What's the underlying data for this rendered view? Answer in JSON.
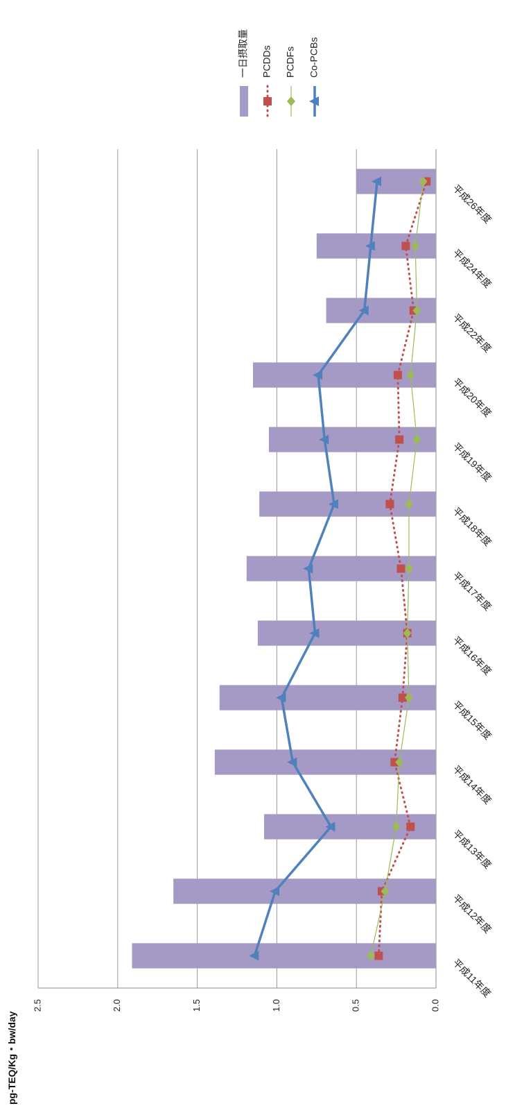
{
  "chart_data": {
    "type": "bar",
    "title": "",
    "ylabel": "pg-TEQ/Kg・bw/day",
    "xlabel": "",
    "ylim": [
      0,
      2.5
    ],
    "yticks": [
      "0.0",
      "0.5",
      "1.0",
      "1.5",
      "2.0",
      "2.5"
    ],
    "grid": true,
    "legend_position": "top-right",
    "categories": [
      "平成11年度",
      "平成12年度",
      "平成13年度",
      "平成14年度",
      "平成15年度",
      "平成16年度",
      "平成17年度",
      "平成18年度",
      "平成19年度",
      "平成20年度",
      "平成22年度",
      "平成24年度",
      "平成26年度"
    ],
    "series": [
      {
        "name": "一日摂取量",
        "kind": "bar",
        "color": "#a599c5",
        "values": [
          1.91,
          1.65,
          1.08,
          1.39,
          1.36,
          1.12,
          1.19,
          1.11,
          1.05,
          1.15,
          0.69,
          0.75,
          0.5
        ]
      },
      {
        "name": "PCDDs",
        "kind": "line-dotted",
        "marker": "square",
        "color": "#c0504d",
        "values": [
          0.36,
          0.34,
          0.16,
          0.26,
          0.21,
          0.18,
          0.22,
          0.29,
          0.23,
          0.24,
          0.14,
          0.19,
          0.06
        ]
      },
      {
        "name": "PCDFs",
        "kind": "line",
        "marker": "diamond",
        "color": "#9bbb59",
        "values": [
          0.41,
          0.32,
          0.25,
          0.23,
          0.17,
          0.18,
          0.17,
          0.17,
          0.12,
          0.16,
          0.12,
          0.13,
          0.08
        ]
      },
      {
        "name": "Co-PCBs",
        "kind": "line",
        "marker": "triangle",
        "color": "#4f81bd",
        "values": [
          1.14,
          1.01,
          0.66,
          0.9,
          0.97,
          0.76,
          0.8,
          0.64,
          0.7,
          0.74,
          0.45,
          0.41,
          0.37
        ]
      }
    ]
  }
}
